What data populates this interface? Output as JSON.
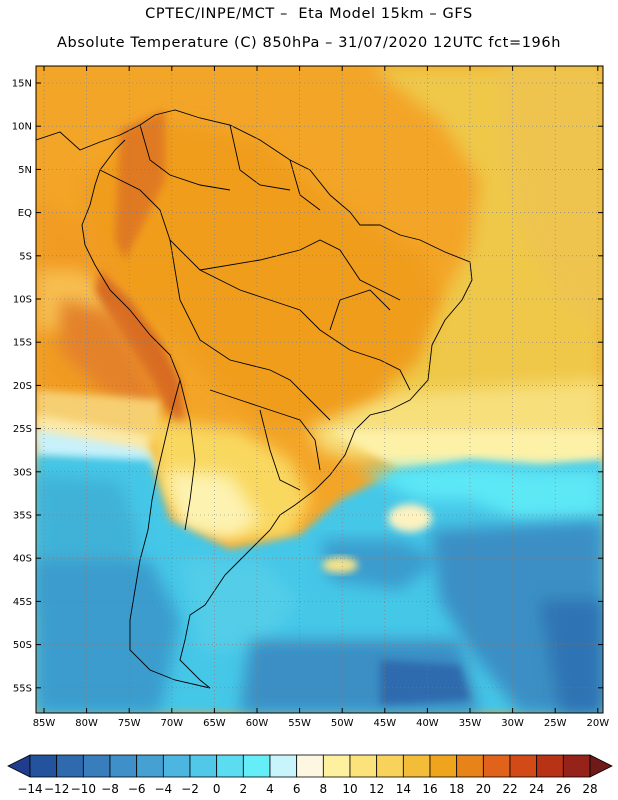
{
  "header": {
    "line1": "CPTEC/INPE/MCT –  Eta Model 15km – GFS",
    "line2": "Absolute Temperature (C) 850hPa – 31/07/2020 12UTC fct=196h"
  },
  "map": {
    "lat_labels": [
      "15N",
      "10N",
      "5N",
      "EQ",
      "5S",
      "10S",
      "15S",
      "20S",
      "25S",
      "30S",
      "35S",
      "40S",
      "45S",
      "50S",
      "55S"
    ],
    "lon_labels": [
      "85W",
      "80W",
      "75W",
      "70W",
      "65W",
      "60W",
      "55W",
      "50W",
      "45W",
      "40W",
      "35W",
      "30W",
      "25W",
      "20W"
    ],
    "gridlines": "dotted",
    "colors": {
      "ocean_tropical": "#f3a528",
      "ocean_subtropical": "#efc84a",
      "land_warm": "#ef9a1e",
      "highlands": "#d46a25",
      "cold_ocean": "#45b8de"
    }
  },
  "colorbar": {
    "labels": [
      "-14",
      "-12",
      "-10",
      "-8",
      "-6",
      "-4",
      "-2",
      "0",
      "2",
      "4",
      "6",
      "8",
      "10",
      "12",
      "14",
      "16",
      "18",
      "20",
      "22",
      "24",
      "26",
      "28"
    ],
    "colors": [
      "#1f3d8c",
      "#23539c",
      "#2f6aae",
      "#3a7dbd",
      "#3f90c8",
      "#44a1d2",
      "#4cb6e0",
      "#52c8e8",
      "#5bdcf0",
      "#66eef8",
      "#c8f4fb",
      "#fdf7e2",
      "#fdf1a0",
      "#fce27a",
      "#f9d25c",
      "#f3bd3a",
      "#efa41e",
      "#e8831a",
      "#e0621b",
      "#d24a18",
      "#b83216",
      "#96231a",
      "#6e1a1a"
    ]
  }
}
